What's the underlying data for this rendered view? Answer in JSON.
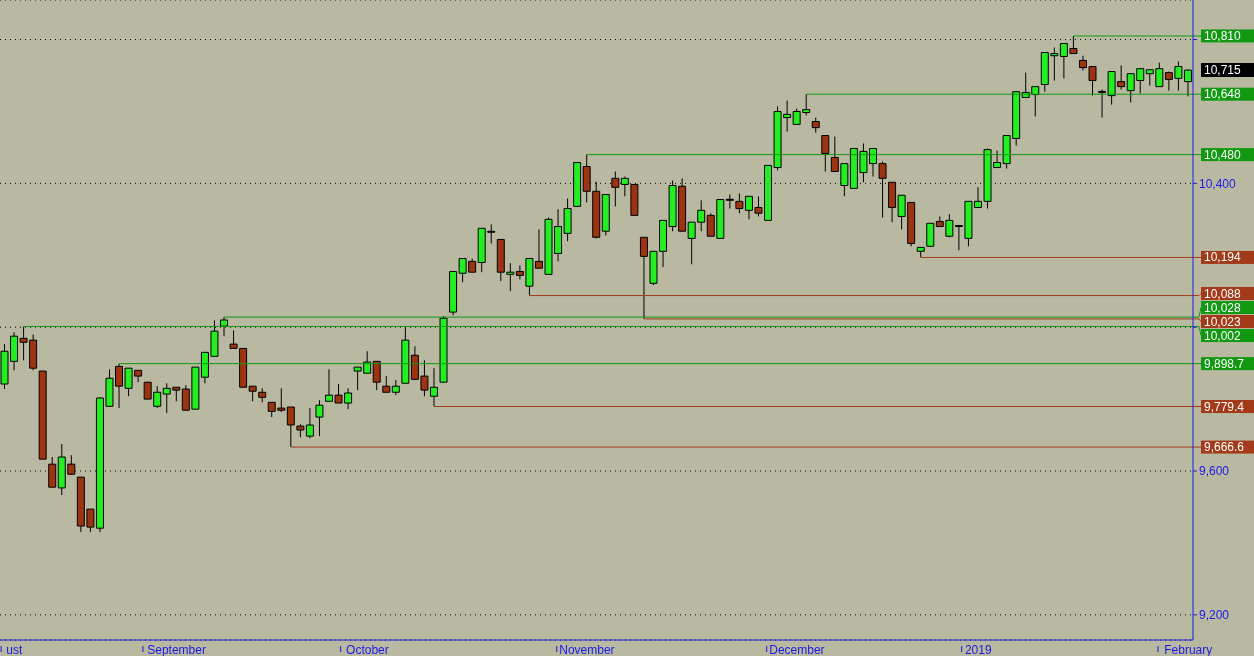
{
  "chart_data": {
    "type": "candlestick",
    "categories": [
      null,
      "ust",
      null,
      null,
      null,
      null,
      null,
      null,
      null,
      null,
      null,
      null,
      null,
      null,
      null,
      null,
      null,
      null,
      "September",
      null,
      null,
      null,
      null,
      null,
      null,
      null,
      null,
      null,
      null,
      null,
      null,
      null,
      null,
      null,
      null,
      null,
      null,
      null,
      "October",
      null,
      null,
      null,
      null,
      null,
      null,
      null,
      null,
      null,
      null,
      null,
      null,
      null,
      null,
      null,
      null,
      null,
      null,
      null,
      null,
      null,
      null,
      "November",
      null,
      null,
      null,
      null,
      null,
      null,
      null,
      null,
      null,
      null,
      null,
      null,
      null,
      null,
      null,
      null,
      null,
      null,
      null,
      null,
      null,
      "December",
      null,
      null,
      null,
      null,
      null,
      null,
      null,
      null,
      null,
      null,
      null,
      null,
      null,
      null,
      null,
      null,
      null,
      null,
      "2019",
      null,
      null,
      null,
      null,
      null,
      null,
      null,
      null,
      null,
      null,
      null,
      null,
      null,
      null,
      null,
      null,
      null,
      null,
      null,
      null,
      null,
      "February"
    ],
    "ohlc": [
      [
        9842,
        9953,
        9828,
        9933
      ],
      [
        9905,
        9986,
        9880,
        9975
      ],
      [
        9969,
        10002,
        9908,
        9958
      ],
      [
        9964,
        9980,
        9880,
        9886
      ],
      [
        9878,
        9878,
        9633,
        9633
      ],
      [
        9619,
        9639,
        9555,
        9555
      ],
      [
        9553,
        9675,
        9533,
        9639
      ],
      [
        9619,
        9644,
        9589,
        9591
      ],
      [
        9583,
        9583,
        9430,
        9447
      ],
      [
        9494,
        9494,
        9430,
        9444
      ],
      [
        9441,
        9805,
        9430,
        9803
      ],
      [
        9780,
        9883,
        9778,
        9858
      ],
      [
        9891,
        9898.7,
        9775,
        9836
      ],
      [
        9830,
        9886,
        9808,
        9886
      ],
      [
        9880,
        9880,
        9847,
        9864
      ],
      [
        9847,
        9847,
        9800,
        9800
      ],
      [
        9780,
        9836,
        9775,
        9819
      ],
      [
        9814,
        9844,
        9761,
        9830
      ],
      [
        9833,
        9833,
        9794,
        9825
      ],
      [
        9828,
        9839,
        9769,
        9769
      ],
      [
        9772,
        9889,
        9772,
        9889
      ],
      [
        9861,
        9930,
        9844,
        9930
      ],
      [
        9919,
        10019,
        9919,
        9989
      ],
      [
        10003,
        10028,
        9975,
        10020
      ],
      [
        9953,
        9991,
        9941,
        9941
      ],
      [
        9941,
        9941,
        9833,
        9833
      ],
      [
        9836,
        9836,
        9794,
        9822
      ],
      [
        9819,
        9830,
        9791,
        9805
      ],
      [
        9791,
        9791,
        9750,
        9766
      ],
      [
        9775,
        9830,
        9764,
        9769
      ],
      [
        9778,
        9778,
        9666.6,
        9728
      ],
      [
        9725,
        9730,
        9694,
        9714
      ],
      [
        9697,
        9775,
        9691,
        9728
      ],
      [
        9750,
        9797,
        9697,
        9783
      ],
      [
        9794,
        9883,
        9794,
        9811
      ],
      [
        9811,
        9842,
        9789,
        9789
      ],
      [
        9789,
        9830,
        9772,
        9817
      ],
      [
        9878,
        9889,
        9825,
        9889
      ],
      [
        9872,
        9933,
        9872,
        9903
      ],
      [
        9905,
        9905,
        9825,
        9847
      ],
      [
        9836,
        9864,
        9819,
        9819
      ],
      [
        9819,
        9853,
        9811,
        9836
      ],
      [
        9844,
        10000,
        9844,
        9964
      ],
      [
        9922,
        9947,
        9853,
        9855
      ],
      [
        9864,
        9908,
        9808,
        9825
      ],
      [
        9808,
        9886,
        9779.4,
        9833
      ],
      [
        9847,
        10031,
        9847,
        10025
      ],
      [
        10042,
        10155,
        10033,
        10155
      ],
      [
        10150,
        10191,
        10125,
        10191
      ],
      [
        10183,
        10191,
        10153,
        10153
      ],
      [
        10180,
        10275,
        10153,
        10275
      ],
      [
        10264,
        10286,
        10233,
        10264
      ],
      [
        10244,
        10244,
        10128,
        10153
      ],
      [
        10147,
        10178,
        10100,
        10153
      ],
      [
        10155,
        10172,
        10133,
        10144
      ],
      [
        10114,
        10191,
        10088,
        10191
      ],
      [
        10183,
        10272,
        10164,
        10164
      ],
      [
        10147,
        10305,
        10147,
        10300
      ],
      [
        10205,
        10328,
        10183,
        10280
      ],
      [
        10261,
        10358,
        10239,
        10330
      ],
      [
        10336,
        10458,
        10336,
        10458
      ],
      [
        10447,
        10480,
        10347,
        10378
      ],
      [
        10378,
        10405,
        10247,
        10250
      ],
      [
        10267,
        10369,
        10255,
        10369
      ],
      [
        10414,
        10433,
        10336,
        10389
      ],
      [
        10397,
        10419,
        10364,
        10414
      ],
      [
        10397,
        10397,
        10311,
        10311
      ],
      [
        10250,
        10250,
        10023,
        10197
      ],
      [
        10122,
        10211,
        10117,
        10211
      ],
      [
        10211,
        10297,
        10167,
        10297
      ],
      [
        10280,
        10408,
        10267,
        10394
      ],
      [
        10392,
        10414,
        10267,
        10267
      ],
      [
        10247,
        10292,
        10175,
        10292
      ],
      [
        10292,
        10353,
        10267,
        10325
      ],
      [
        10311,
        10317,
        10253,
        10253
      ],
      [
        10247,
        10355,
        10247,
        10355
      ],
      [
        10353,
        10369,
        10330,
        10353
      ],
      [
        10350,
        10372,
        10317,
        10330
      ],
      [
        10325,
        10364,
        10300,
        10364
      ],
      [
        10333,
        10364,
        10308,
        10317
      ],
      [
        10297,
        10450,
        10297,
        10450
      ],
      [
        10444,
        10614,
        10436,
        10600
      ],
      [
        10583,
        10630,
        10544,
        10592
      ],
      [
        10564,
        10608,
        10564,
        10600
      ],
      [
        10597,
        10648,
        10589,
        10605
      ],
      [
        10572,
        10583,
        10541,
        10555
      ],
      [
        10533,
        10533,
        10433,
        10483
      ],
      [
        10472,
        10530,
        10433,
        10433
      ],
      [
        10394,
        10455,
        10364,
        10455
      ],
      [
        10386,
        10497,
        10386,
        10497
      ],
      [
        10430,
        10511,
        10403,
        10489
      ],
      [
        10455,
        10497,
        10419,
        10497
      ],
      [
        10455,
        10461,
        10305,
        10414
      ],
      [
        10403,
        10403,
        10292,
        10333
      ],
      [
        10308,
        10367,
        10272,
        10367
      ],
      [
        10347,
        10347,
        10225,
        10233
      ],
      [
        10211,
        10222,
        10194,
        10222
      ],
      [
        10225,
        10289,
        10225,
        10289
      ],
      [
        10294,
        10308,
        10280,
        10280
      ],
      [
        10253,
        10314,
        10250,
        10297
      ],
      [
        10280,
        10280,
        10214,
        10280
      ],
      [
        10247,
        10350,
        10225,
        10350
      ],
      [
        10333,
        10389,
        10333,
        10350
      ],
      [
        10350,
        10497,
        10330,
        10494
      ],
      [
        10444,
        10491,
        10444,
        10458
      ],
      [
        10455,
        10533,
        10441,
        10533
      ],
      [
        10525,
        10655,
        10505,
        10655
      ],
      [
        10639,
        10708,
        10639,
        10653
      ],
      [
        10647,
        10669,
        10586,
        10669
      ],
      [
        10675,
        10764,
        10655,
        10764
      ],
      [
        10755,
        10778,
        10686,
        10761
      ],
      [
        10753,
        10789,
        10692,
        10789
      ],
      [
        10775,
        10810,
        10761,
        10761
      ],
      [
        10742,
        10755,
        10714,
        10722
      ],
      [
        10725,
        10725,
        10644,
        10686
      ],
      [
        10655,
        10661,
        10583,
        10653
      ],
      [
        10644,
        10711,
        10619,
        10711
      ],
      [
        10683,
        10728,
        10661,
        10669
      ],
      [
        10658,
        10705,
        10625,
        10705
      ],
      [
        10686,
        10719,
        10650,
        10719
      ],
      [
        10705,
        10716,
        10672,
        10716
      ],
      [
        10669,
        10736,
        10669,
        10719
      ],
      [
        10708,
        10711,
        10658,
        10689
      ],
      [
        10692,
        10739,
        10658,
        10725
      ],
      [
        10683,
        10716,
        10642,
        10715
      ]
    ],
    "colors": [
      "#22ee22",
      "#22ee22",
      "#9c3412",
      "#9c3412",
      "#9c3412",
      "#9c3412",
      "#22ee22",
      "#9c3412",
      "#9c3412",
      "#9c3412",
      "#22ee22",
      "#22ee22",
      "#9c3412",
      "#22ee22",
      "#9c3412",
      "#9c3412",
      "#22ee22",
      "#22ee22",
      "#9c3412",
      "#9c3412",
      "#22ee22",
      "#22ee22",
      "#22ee22",
      "#22ee22",
      "#9c3412",
      "#9c3412",
      "#9c3412",
      "#9c3412",
      "#9c3412",
      "#9c3412",
      "#9c3412",
      "#9c3412",
      "#22ee22",
      "#22ee22",
      "#22ee22",
      "#9c3412",
      "#22ee22",
      "#22ee22",
      "#22ee22",
      "#9c3412",
      "#9c3412",
      "#22ee22",
      "#22ee22",
      "#9c3412",
      "#9c3412",
      "#22ee22",
      "#22ee22",
      "#22ee22",
      "#22ee22",
      "#9c3412",
      "#22ee22",
      "#000000",
      "#9c3412",
      "#22ee22",
      "#9c3412",
      "#22ee22",
      "#9c3412",
      "#22ee22",
      "#22ee22",
      "#22ee22",
      "#22ee22",
      "#9c3412",
      "#9c3412",
      "#22ee22",
      "#9c3412",
      "#22ee22",
      "#9c3412",
      "#9c3412",
      "#22ee22",
      "#22ee22",
      "#22ee22",
      "#9c3412",
      "#22ee22",
      "#22ee22",
      "#9c3412",
      "#22ee22",
      "#000000",
      "#9c3412",
      "#22ee22",
      "#9c3412",
      "#22ee22",
      "#22ee22",
      "#22ee22",
      "#22ee22",
      "#22ee22",
      "#9c3412",
      "#9c3412",
      "#9c3412",
      "#22ee22",
      "#22ee22",
      "#22ee22",
      "#22ee22",
      "#9c3412",
      "#9c3412",
      "#22ee22",
      "#9c3412",
      "#22ee22",
      "#22ee22",
      "#9c3412",
      "#22ee22",
      "#000000",
      "#22ee22",
      "#22ee22",
      "#22ee22",
      "#22ee22",
      "#22ee22",
      "#22ee22",
      "#22ee22",
      "#22ee22",
      "#22ee22",
      "#22ee22",
      "#22ee22",
      "#9c3412",
      "#9c3412",
      "#9c3412",
      "#9c3412",
      "#22ee22",
      "#9c3412",
      "#22ee22",
      "#22ee22",
      "#22ee22",
      "#22ee22",
      "#9c3412",
      "#22ee22",
      "#22ee22"
    ],
    "ylim": [
      9130,
      10910
    ],
    "yticks": [
      {
        "value": 9200,
        "label": "9,200"
      },
      {
        "value": 9600,
        "label": "9,600"
      },
      {
        "value": 10000,
        "label": null
      },
      {
        "value": 10400,
        "label": "10,400"
      },
      {
        "value": 10800,
        "label": null
      }
    ],
    "grid": "y",
    "ref_lines": [
      {
        "axis": "y",
        "value": 10810,
        "label": "10,810",
        "color": "#119911"
      },
      {
        "axis": "y",
        "value": 10648,
        "label": "10,648",
        "color": "#119911"
      },
      {
        "axis": "y",
        "value": 10480,
        "label": "10,480",
        "color": "#119911"
      },
      {
        "axis": "y",
        "value": 10194,
        "label": "10,194",
        "color": "#a33a1a"
      },
      {
        "axis": "y",
        "value": 10088,
        "label": "10,088",
        "color": "#a33a1a"
      },
      {
        "axis": "y",
        "value": 10028,
        "label": "10,028",
        "color": "#119911"
      },
      {
        "axis": "y",
        "value": 10023,
        "label": "10,023",
        "color": "#a33a1a"
      },
      {
        "axis": "y",
        "value": 10002,
        "label": "10,002",
        "color": "#119911"
      },
      {
        "axis": "y",
        "value": 9898.7,
        "label": "9,898.7",
        "color": "#119911"
      },
      {
        "axis": "y",
        "value": 9779.4,
        "label": "9,779.4",
        "color": "#a33a1a"
      },
      {
        "axis": "y",
        "value": 9666.6,
        "label": "9,666.6",
        "color": "#a33a1a"
      }
    ],
    "annotations": [
      "10,715"
    ]
  }
}
